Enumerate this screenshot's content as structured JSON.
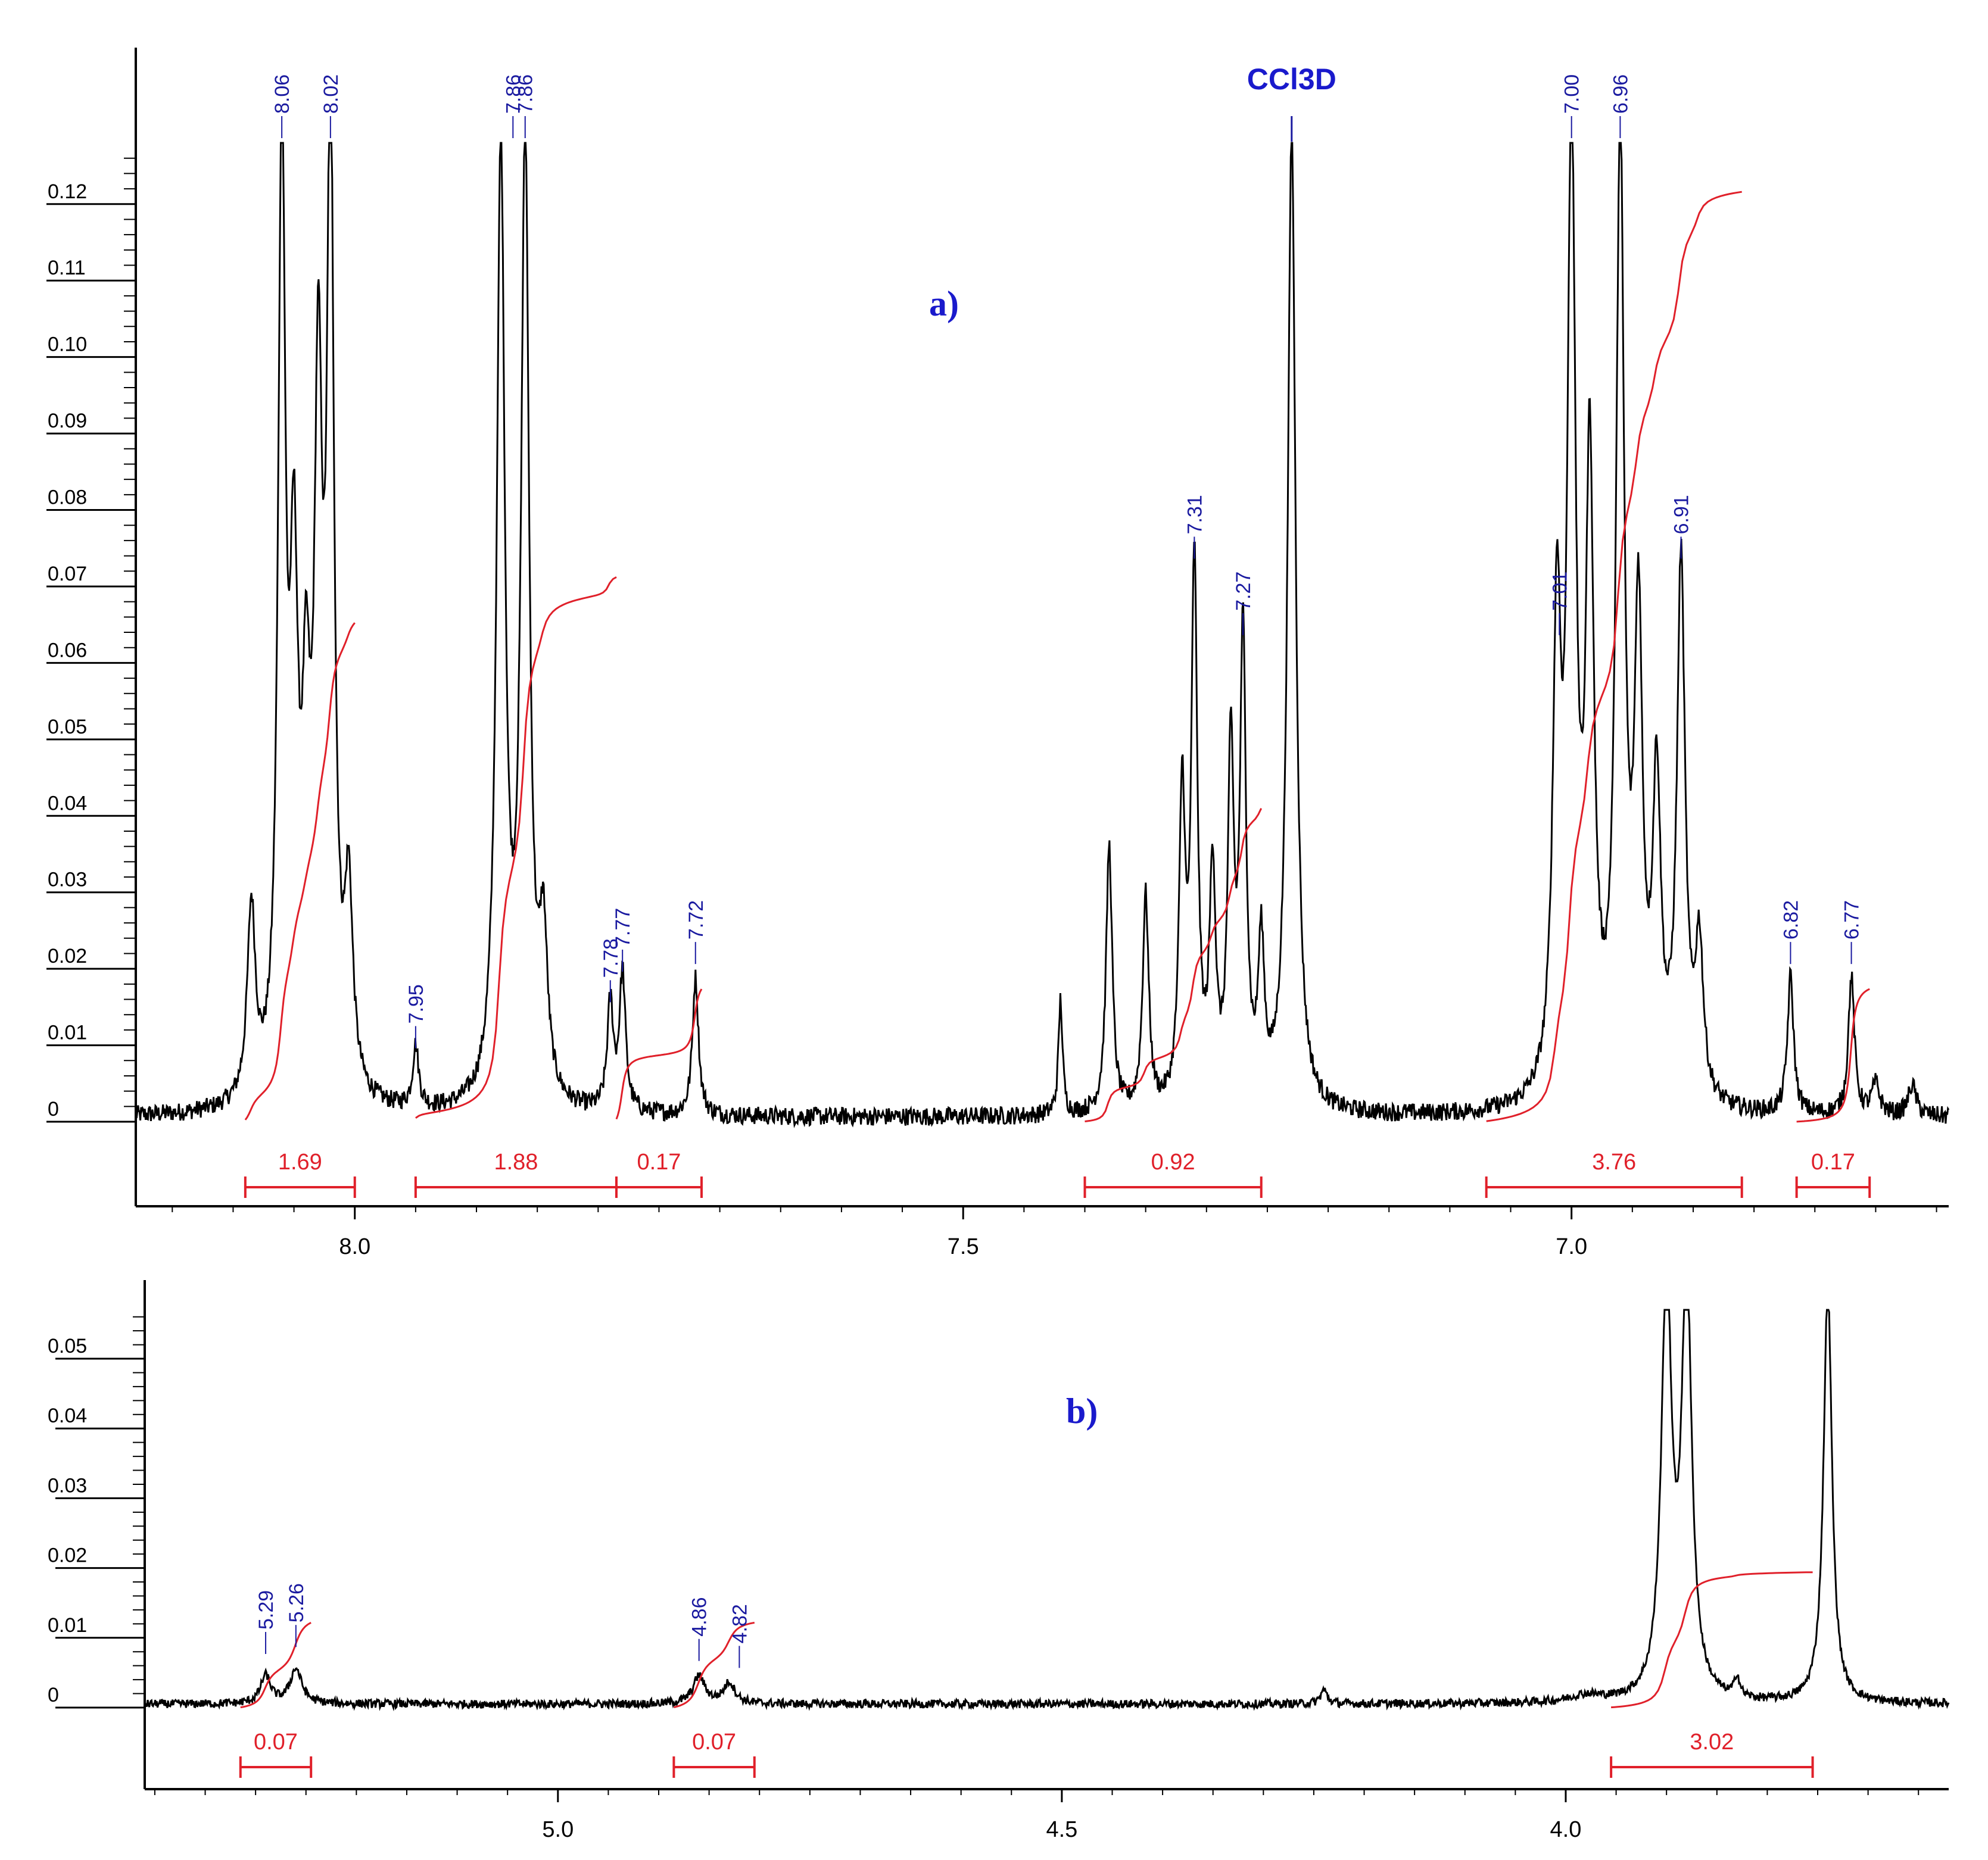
{
  "colors": {
    "spectrum": "#000000",
    "integral": "#e0202a",
    "peak_label": "#1a1aa0",
    "panel_label": "#1a1acc"
  },
  "chart_data": [
    {
      "type": "line",
      "panel_label": "a)",
      "solvent_label": "CCl3D",
      "solvent_position": 7.23,
      "xlim": [
        8.18,
        6.69
      ],
      "ylim": [
        -0.006,
        0.128
      ],
      "x_ticks": [
        "8.0",
        "7.5",
        "7.0"
      ],
      "x_tick_values": [
        8.0,
        7.5,
        7.0
      ],
      "y_ticks": [
        "0",
        "0.01",
        "0.02",
        "0.03",
        "0.04",
        "0.05",
        "0.06",
        "0.07",
        "0.08",
        "0.09",
        "0.10",
        "0.11",
        "0.12"
      ],
      "y_tick_values": [
        0,
        0.01,
        0.02,
        0.03,
        0.04,
        0.05,
        0.06,
        0.07,
        0.08,
        0.09,
        0.1,
        0.11,
        0.12
      ],
      "peaks": [
        {
          "label": "8.06",
          "x": 8.06,
          "y": 0.128
        },
        {
          "label": "8.02",
          "x": 8.02,
          "y": 0.128
        },
        {
          "label": "7.86",
          "x": 7.87,
          "y": 0.128
        },
        {
          "label": "7.86",
          "x": 7.86,
          "y": 0.128
        },
        {
          "label": "7.95",
          "x": 7.95,
          "y": 0.009
        },
        {
          "label": "7.78",
          "x": 7.79,
          "y": 0.015
        },
        {
          "label": "7.77",
          "x": 7.78,
          "y": 0.019
        },
        {
          "label": "7.72",
          "x": 7.72,
          "y": 0.02
        },
        {
          "label": "7.31",
          "x": 7.31,
          "y": 0.073
        },
        {
          "label": "7.27",
          "x": 7.27,
          "y": 0.063
        },
        {
          "label": "7.01",
          "x": 7.01,
          "y": 0.063
        },
        {
          "label": "7.00",
          "x": 7.0,
          "y": 0.128
        },
        {
          "label": "6.96",
          "x": 6.96,
          "y": 0.128
        },
        {
          "label": "6.91",
          "x": 6.91,
          "y": 0.073
        },
        {
          "label": "6.82",
          "x": 6.82,
          "y": 0.02
        },
        {
          "label": "6.77",
          "x": 6.77,
          "y": 0.02
        }
      ],
      "integrals": [
        {
          "label": "1.69",
          "from": 8.09,
          "to": 8.0
        },
        {
          "label": "1.88",
          "from": 7.95,
          "to": 7.785
        },
        {
          "label": "0.17",
          "from": 7.785,
          "to": 7.715
        },
        {
          "label": "0.92",
          "from": 7.4,
          "to": 7.255
        },
        {
          "label": "3.76",
          "from": 7.07,
          "to": 6.86
        },
        {
          "label": "0.17",
          "from": 6.815,
          "to": 6.755
        }
      ]
    },
    {
      "type": "line",
      "panel_label": "b)",
      "xlim": [
        5.41,
        3.62
      ],
      "ylim": [
        -0.002,
        0.057
      ],
      "x_ticks": [
        "5.0",
        "4.5",
        "4.0"
      ],
      "x_tick_values": [
        5.0,
        4.5,
        4.0
      ],
      "y_ticks": [
        "0",
        "0.01",
        "0.02",
        "0.03",
        "0.04",
        "0.05"
      ],
      "y_tick_values": [
        0,
        0.01,
        0.02,
        0.03,
        0.04,
        0.05
      ],
      "peaks": [
        {
          "label": "5.29",
          "x": 5.29,
          "y": 0.007
        },
        {
          "label": "5.26",
          "x": 5.26,
          "y": 0.008
        },
        {
          "label": "4.86",
          "x": 4.86,
          "y": 0.006
        },
        {
          "label": "4.82",
          "x": 4.82,
          "y": 0.005
        }
      ],
      "integrals": [
        {
          "label": "0.07",
          "from": 5.315,
          "to": 5.245
        },
        {
          "label": "0.07",
          "from": 4.885,
          "to": 4.805
        },
        {
          "label": "3.02",
          "from": 3.955,
          "to": 3.755
        }
      ]
    }
  ]
}
